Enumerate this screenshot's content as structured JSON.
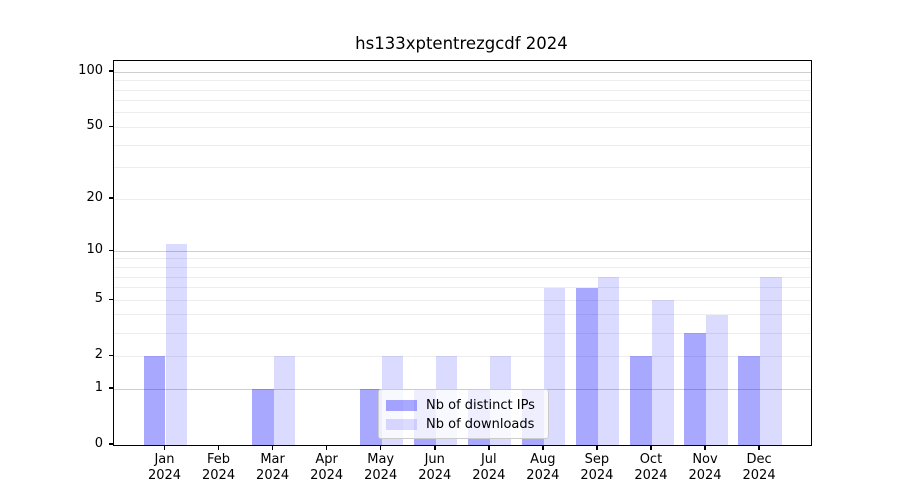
{
  "title": "hs133xptentrezgcdf 2024",
  "chart_data": {
    "type": "bar",
    "title": "hs133xptentrezgcdf 2024",
    "categories": [
      "Jan",
      "Feb",
      "Mar",
      "Apr",
      "May",
      "Jun",
      "Jul",
      "Aug",
      "Sep",
      "Oct",
      "Nov",
      "Dec"
    ],
    "category_year": "2024",
    "series": [
      {
        "name": "Nb of distinct IPs",
        "color": "#0000FF57",
        "values": [
          2,
          0,
          1,
          0,
          1,
          1,
          1,
          1,
          6,
          2,
          3,
          2
        ]
      },
      {
        "name": "Nb of downloads",
        "color": "#0000FF24",
        "values": [
          11,
          0,
          2,
          0,
          2,
          2,
          2,
          6,
          7,
          5,
          4,
          7
        ]
      }
    ],
    "xlabel": "",
    "ylabel": "",
    "yscale": "log1p",
    "ylim": [
      0,
      115
    ],
    "yticks": [
      0,
      1,
      2,
      5,
      10,
      20,
      50,
      100
    ],
    "grid": true,
    "gridlines": {
      "major": [
        1,
        10,
        100
      ],
      "minor": [
        2,
        3,
        4,
        5,
        6,
        7,
        8,
        9,
        20,
        30,
        40,
        50,
        60,
        70,
        80,
        90
      ],
      "major_color": "#CFCFCF",
      "minor_color": "#EDEDED"
    },
    "legend": {
      "position": "lower center",
      "items": [
        "Nb of distinct IPs",
        "Nb of downloads"
      ]
    },
    "axis_color": "#000000",
    "background_color": "#FFFFFF"
  }
}
